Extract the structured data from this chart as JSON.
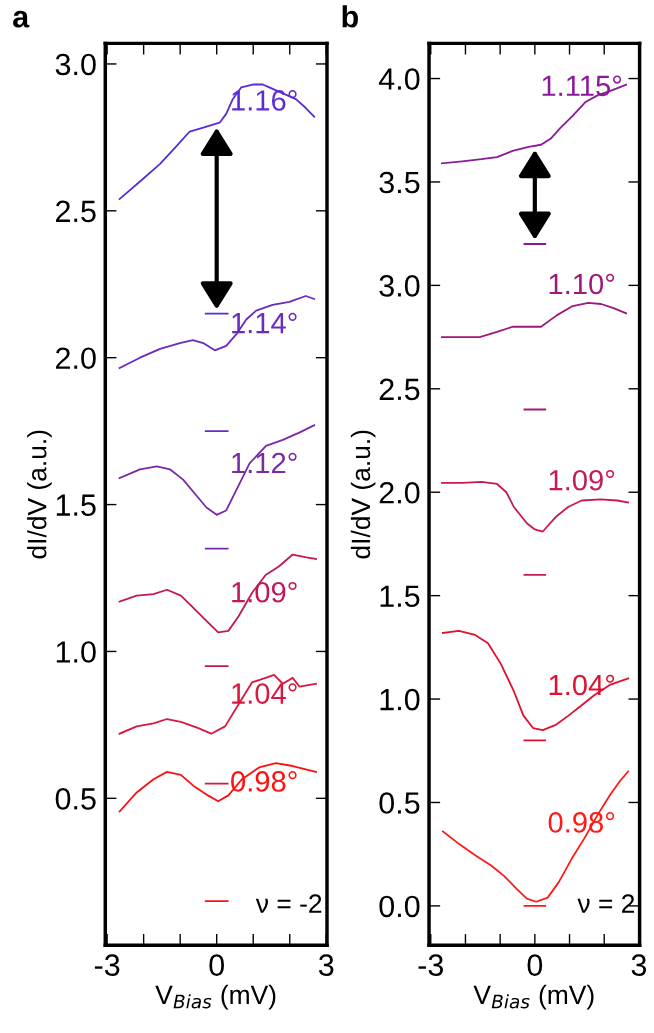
{
  "chart_data": [
    {
      "type": "line",
      "title": "a",
      "xlabel": "V$_{Bias}$ (mV)",
      "ylabel": "dI/dV (a.u.)",
      "xlim": [
        -3.05,
        3.02
      ],
      "ylim": [
        0.0,
        3.07
      ],
      "xticks": [
        -3,
        {
          "value": -2,
          "label": null
        },
        {
          "value": -1,
          "label": null
        },
        0,
        {
          "value": 1,
          "label": null
        },
        {
          "value": 2,
          "label": null
        },
        3
      ],
      "yticks": [
        {
          "value": 0.5,
          "label": "0.5"
        },
        {
          "value": 1,
          "label": "1.0"
        },
        {
          "value": 1.5,
          "label": "1.5"
        },
        {
          "value": 2,
          "label": "2.0"
        },
        {
          "value": 2.5,
          "label": "2.5"
        },
        {
          "value": 3,
          "label": "3.0"
        }
      ],
      "marker": "none",
      "line_style": "solid",
      "series": [
        {
          "name": "1.16°",
          "color": "#5b2bd6",
          "x": [
            -2.66,
            -2.1,
            -1.55,
            -1.1,
            -0.74,
            -0.46,
            -0.19,
            0.08,
            0.26,
            0.44,
            0.67,
            0.99,
            1.26,
            1.44,
            1.81,
            2.17,
            2.44,
            2.67
          ],
          "values": [
            2.54,
            2.6,
            2.66,
            2.72,
            2.77,
            2.78,
            2.79,
            2.8,
            2.83,
            2.88,
            2.92,
            2.93,
            2.93,
            2.92,
            2.9,
            2.88,
            2.85,
            2.82
          ]
        },
        {
          "name": "1.14°",
          "color": "#6a2bc0",
          "x": [
            -2.66,
            -2.1,
            -1.55,
            -1.01,
            -0.65,
            -0.37,
            -0.05,
            0.26,
            0.54,
            0.81,
            1.08,
            1.53,
            1.99,
            2.44,
            2.67
          ],
          "values": [
            1.965,
            2.0,
            2.03,
            2.05,
            2.06,
            2.05,
            2.025,
            2.04,
            2.08,
            2.13,
            2.16,
            2.18,
            2.19,
            2.21,
            2.2
          ]
        },
        {
          "name": "1.12°",
          "color": "#7a2aa8",
          "x": [
            -2.66,
            -2.1,
            -1.64,
            -1.28,
            -0.92,
            -0.55,
            -0.28,
            0.0,
            0.26,
            0.54,
            0.9,
            1.35,
            1.81,
            2.26,
            2.67
          ],
          "values": [
            1.59,
            1.62,
            1.63,
            1.62,
            1.585,
            1.53,
            1.49,
            1.465,
            1.48,
            1.55,
            1.64,
            1.7,
            1.72,
            1.745,
            1.77
          ]
        },
        {
          "name": "1.09°",
          "color": "#c0185a",
          "x": [
            -2.66,
            -2.19,
            -1.73,
            -1.36,
            -0.98,
            -0.61,
            -0.33,
            0.04,
            0.32,
            0.6,
            0.97,
            1.34,
            1.71,
            2.08,
            2.46,
            2.72
          ],
          "values": [
            1.17,
            1.19,
            1.195,
            1.21,
            1.19,
            1.145,
            1.11,
            1.065,
            1.07,
            1.12,
            1.2,
            1.26,
            1.29,
            1.33,
            1.32,
            1.315
          ]
        },
        {
          "name": "1.04°",
          "color": "#d81840",
          "x": [
            -2.66,
            -2.19,
            -1.73,
            -1.36,
            -0.98,
            -0.52,
            -0.15,
            0.23,
            0.6,
            0.97,
            1.34,
            1.57,
            1.81,
            2.08,
            2.27,
            2.72
          ],
          "values": [
            0.72,
            0.745,
            0.755,
            0.77,
            0.76,
            0.74,
            0.72,
            0.745,
            0.82,
            0.895,
            0.91,
            0.92,
            0.89,
            0.91,
            0.88,
            0.89
          ]
        },
        {
          "name": "0.98°",
          "color": "#ff1010",
          "x": [
            -2.66,
            -2.19,
            -1.73,
            -1.36,
            -0.98,
            -0.61,
            -0.24,
            0.04,
            0.32,
            0.69,
            1.16,
            1.62,
            2.08,
            2.72
          ],
          "values": [
            0.455,
            0.52,
            0.565,
            0.59,
            0.58,
            0.54,
            0.51,
            0.49,
            0.51,
            0.565,
            0.605,
            0.62,
            0.61,
            0.59
          ]
        },
        {
          "color": "#5b2bd6",
          "x": [
            -0.3,
            0.3
          ],
          "values": [
            2.15,
            2.15
          ]
        },
        {
          "color": "#6a2bc0",
          "x": [
            -0.3,
            0.3
          ],
          "values": [
            1.75,
            1.75
          ]
        },
        {
          "color": "#7a2aa8",
          "x": [
            -0.3,
            0.3
          ],
          "values": [
            1.35,
            1.35
          ]
        },
        {
          "color": "#c0185a",
          "x": [
            -0.3,
            0.3
          ],
          "values": [
            0.95,
            0.95
          ]
        },
        {
          "color": "#d81840",
          "x": [
            -0.3,
            0.3
          ],
          "values": [
            0.55,
            0.55
          ]
        },
        {
          "color": "#ff1010",
          "x": [
            -0.3,
            0.3
          ],
          "values": [
            0.15,
            0.15
          ]
        }
      ],
      "annotations": [
        "ν = -2"
      ]
    },
    {
      "type": "line",
      "title": "b",
      "xlabel": "V$_{Bias}$ (mV)",
      "ylabel": "dI/dV (a.u.)",
      "xlim": [
        -3.05,
        3.02
      ],
      "ylim": [
        -0.19,
        4.17
      ],
      "xticks": [
        -3,
        {
          "value": -2,
          "label": null
        },
        {
          "value": -1,
          "label": null
        },
        0,
        {
          "value": 1,
          "label": null
        },
        {
          "value": 2,
          "label": null
        },
        3
      ],
      "yticks": [
        {
          "value": 0,
          "label": "0.0"
        },
        {
          "value": 0.5,
          "label": "0.5"
        },
        {
          "value": 1,
          "label": "1.0"
        },
        {
          "value": 1.5,
          "label": "1.5"
        },
        {
          "value": 2,
          "label": "2.0"
        },
        {
          "value": 2.5,
          "label": "2.5"
        },
        {
          "value": 3,
          "label": "3.0"
        },
        {
          "value": 3.5,
          "label": "3.5"
        },
        {
          "value": 4,
          "label": "4.0"
        }
      ],
      "marker": "none",
      "line_style": "solid",
      "series": [
        {
          "name": "1.115°",
          "color": "#8a1a9a",
          "x": [
            -2.68,
            -2.09,
            -1.54,
            -1.09,
            -0.64,
            -0.18,
            0.18,
            0.46,
            0.73,
            1.09,
            1.45,
            1.82,
            2.18,
            2.63
          ],
          "values": [
            3.59,
            3.6,
            3.61,
            3.62,
            3.65,
            3.67,
            3.68,
            3.71,
            3.76,
            3.82,
            3.885,
            3.92,
            3.94,
            3.97
          ]
        },
        {
          "name": "1.10°",
          "color": "#a01878",
          "x": [
            -2.68,
            -2.09,
            -1.59,
            -1.09,
            -0.64,
            -0.18,
            0.18,
            0.63,
            1.09,
            1.54,
            1.91,
            2.27,
            2.63
          ],
          "values": [
            2.75,
            2.75,
            2.75,
            2.775,
            2.8,
            2.8,
            2.8,
            2.855,
            2.9,
            2.915,
            2.91,
            2.89,
            2.865
          ]
        },
        {
          "name": "1.09°",
          "color": "#c81858",
          "x": [
            -2.68,
            -2.09,
            -1.54,
            -1.09,
            -0.82,
            -0.61,
            -0.23,
            0.0,
            0.23,
            0.6,
            0.97,
            1.35,
            1.9,
            2.37,
            2.69
          ],
          "values": [
            2.045,
            2.045,
            2.05,
            2.04,
            2.0,
            1.93,
            1.85,
            1.82,
            1.81,
            1.88,
            1.93,
            1.96,
            1.965,
            1.96,
            1.95
          ]
        },
        {
          "name": "1.04°",
          "color": "#e01030",
          "x": [
            -2.65,
            -2.19,
            -1.72,
            -1.35,
            -0.98,
            -0.61,
            -0.33,
            -0.05,
            0.23,
            0.6,
            0.97,
            1.35,
            1.72,
            2.18,
            2.69
          ],
          "values": [
            1.32,
            1.33,
            1.31,
            1.27,
            1.17,
            1.04,
            0.92,
            0.86,
            0.85,
            0.875,
            0.92,
            0.97,
            1.02,
            1.07,
            1.1
          ]
        },
        {
          "name": "0.98°",
          "color": "#ff1a1a",
          "x": [
            -2.65,
            -2.19,
            -1.72,
            -1.26,
            -0.89,
            -0.51,
            -0.23,
            0.04,
            0.37,
            0.69,
            1.07,
            1.44,
            1.81,
            2.18,
            2.46,
            2.69
          ],
          "values": [
            0.36,
            0.3,
            0.245,
            0.195,
            0.145,
            0.08,
            0.035,
            0.02,
            0.04,
            0.115,
            0.23,
            0.33,
            0.44,
            0.54,
            0.605,
            0.65
          ]
        },
        {
          "color": "#8a1a9a",
          "x": [
            -0.3,
            0.3
          ],
          "values": [
            3.2,
            3.2
          ]
        },
        {
          "color": "#a01878",
          "x": [
            -0.3,
            0.3
          ],
          "values": [
            2.4,
            2.4
          ]
        },
        {
          "color": "#c81858",
          "x": [
            -0.3,
            0.3
          ],
          "values": [
            1.6,
            1.6
          ]
        },
        {
          "color": "#e01030",
          "x": [
            -0.3,
            0.3
          ],
          "values": [
            0.8,
            0.8
          ]
        },
        {
          "color": "#ff1a1a",
          "x": [
            -0.3,
            0.3
          ],
          "values": [
            0.0,
            0.0
          ]
        }
      ],
      "annotations": [
        "ν = 2"
      ]
    }
  ]
}
